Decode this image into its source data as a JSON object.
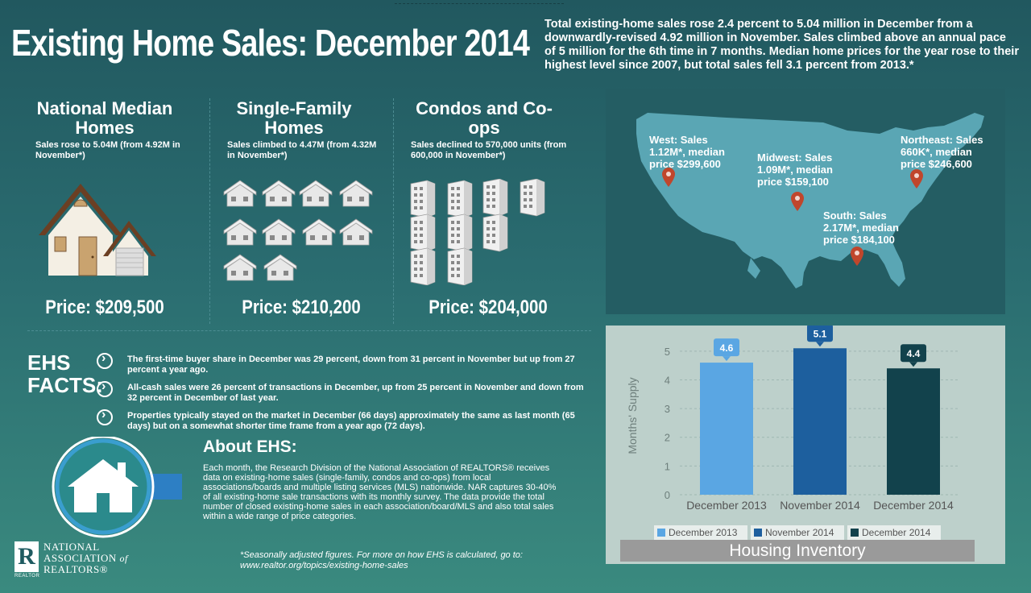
{
  "title": "Existing Home Sales: December 2014",
  "intro": "Total existing-home sales rose 2.4 percent to 5.04 million in December from a downwardly-revised 4.92 million in November. Sales climbed above an annual pace of 5 million for the 6th time in 7 months. Median home prices for the year rose to their highest level since 2007, but total sales fell 3.1 percent from 2013.*",
  "columns": [
    {
      "title": "National Median Homes",
      "subtitle": "Sales rose to 5.04M (from 4.92M in November*)",
      "price": "Price: $209,500"
    },
    {
      "title": "Single-Family Homes",
      "subtitle": "Sales climbed to 4.47M (from 4.32M in November*)",
      "price": "Price: $210,200"
    },
    {
      "title": "Condos and Co-ops",
      "subtitle": "Sales declined to 570,000 units (from 600,000 in November*)",
      "price": "Price: $204,000"
    }
  ],
  "facts": {
    "heading_line1": "EHS",
    "heading_line2": "FACTS:",
    "items": [
      "The first-time buyer share in December was 29 percent, down from 31 percent in November but up from 27 percent a year ago.",
      "All-cash sales were 26 percent of transactions in December, up from 25 percent in November and down from 32 percent in December of last year.",
      "Properties typically stayed on the market in December (66 days) approximately the same as last month (65 days) but on a somewhat shorter time frame from a year ago (72 days)."
    ]
  },
  "about": {
    "title": "About EHS:",
    "text": "Each month, the Research Division of the National Association of REALTORS® receives data on existing-home sales (single-family, condos and co-ops) from local associations/boards and multiple listing services (MLS) nationwide. NAR captures 30-40% of all existing-home sale transactions with its monthly survey. The data provide the total number of closed existing-home sales in each association/board/MLS and also total sales within a wide range of price categories."
  },
  "footnote": "*Seasonally adjusted figures. For more on how EHS is calculated, go to: www.realtor.org/topics/existing-home-sales",
  "logo": {
    "line1": "NATIONAL",
    "line2": "ASSOCIATION",
    "line2b": "of",
    "line3": "REALTORS®",
    "mark": "R",
    "small": "REALTOR"
  },
  "regions": {
    "west": "West: Sales 1.12M*, median price $299,600",
    "midwest": "Midwest: Sales 1.09M*, median price $159,100",
    "northeast": "Northeast: Sales 660K*, median price $246,600",
    "south": "South: Sales 2.17M*, median price $184,100"
  },
  "colors": {
    "light_blue": "#5aa6e3",
    "mid_blue": "#1d5f9e",
    "dark_teal": "#12424c",
    "pin": "#c0462c"
  },
  "chart_data": {
    "type": "bar",
    "title": "Housing Inventory",
    "ylabel": "Months' Supply",
    "categories": [
      "December 2013",
      "November 2014",
      "December 2014"
    ],
    "values": [
      4.6,
      5.1,
      4.4
    ],
    "data_labels": [
      "4.6",
      "5.1",
      "4.4"
    ],
    "ylim": [
      0,
      5.5
    ],
    "yticks": [
      "0",
      "1",
      "2",
      "3",
      "4",
      "5"
    ],
    "legend": [
      "December 2013",
      "November 2014",
      "December 2014"
    ],
    "legend_position": "bottom"
  }
}
